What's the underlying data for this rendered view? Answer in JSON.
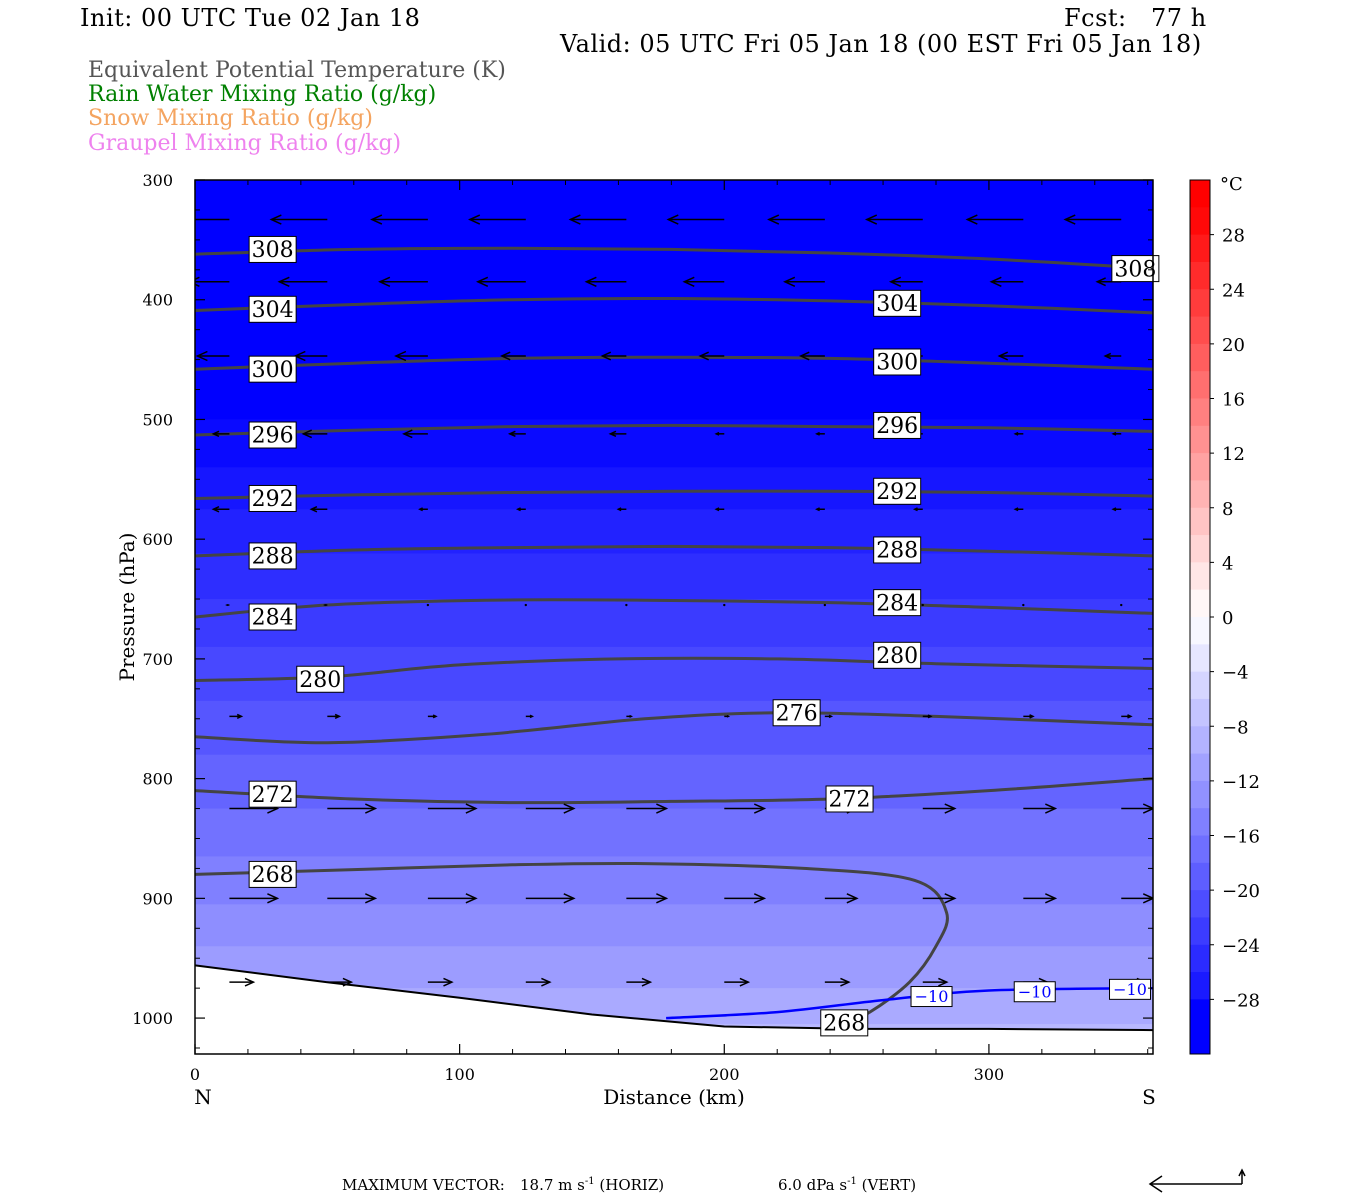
{
  "header": {
    "init": "Init: 00 UTC Tue 02 Jan 18",
    "fcst": "Fcst:   77 h",
    "valid": "Valid: 05 UTC Fri 05 Jan 18 (00 EST Fri 05 Jan 18)"
  },
  "fields": [
    {
      "label": "Equivalent Potential Temperature (K)",
      "color": "#555555"
    },
    {
      "label": "Rain Water Mixing Ratio (g/kg)",
      "color": "#008000"
    },
    {
      "label": "Snow Mixing Ratio (g/kg)",
      "color": "#f4a460"
    },
    {
      "label": "Graupel Mixing Ratio (g/kg)",
      "color": "#ee82ee"
    }
  ],
  "footer": {
    "max_vector_label": "MAXIMUM VECTOR:",
    "horiz_value": "18.7 m s",
    "horiz_unit": "(HORIZ)",
    "vert_value": "6.0 dPa s",
    "vert_unit": "(VERT)",
    "exponent": "-1"
  },
  "chart_data": {
    "type": "contour",
    "title": "",
    "xlabel": "Distance (km)",
    "ylabel": "Pressure (hPa)",
    "xlim": [
      0,
      362
    ],
    "ylim": [
      1030,
      300
    ],
    "x_ticks": [
      0,
      100,
      200,
      300
    ],
    "y_ticks": [
      300,
      400,
      500,
      600,
      700,
      800,
      900,
      1000
    ],
    "x_end_labels": {
      "left": "N",
      "right": "S"
    },
    "colorbar": {
      "unit": "°C",
      "tick_labels": [
        "28",
        "24",
        "20",
        "16",
        "12",
        "8",
        "4",
        "0",
        "−4",
        "−8",
        "−12",
        "−16",
        "−20",
        "−24",
        "−28"
      ],
      "tick_values": [
        28,
        24,
        20,
        16,
        12,
        8,
        4,
        0,
        -4,
        -8,
        -12,
        -16,
        -20,
        -24,
        -28
      ],
      "levels": [
        32,
        30,
        28,
        26,
        24,
        22,
        20,
        18,
        16,
        14,
        12,
        10,
        8,
        6,
        4,
        2,
        0,
        -2,
        -4,
        -6,
        -8,
        -10,
        -12,
        -14,
        -16,
        -18,
        -20,
        -22,
        -24,
        -26,
        -28,
        -32
      ],
      "warm_color": "#ff0000",
      "neutral_color": "#ffffff",
      "cold_color": "#0000ff"
    },
    "theta_e_contours": [
      {
        "value": "308",
        "labels": [
          {
            "x": 18,
            "p": 358
          },
          {
            "x": 344,
            "p": 374
          }
        ],
        "points": [
          [
            0,
            362
          ],
          [
            60,
            358
          ],
          [
            120,
            357
          ],
          [
            180,
            358
          ],
          [
            240,
            361
          ],
          [
            300,
            366
          ],
          [
            362,
            374
          ]
        ]
      },
      {
        "value": "304",
        "labels": [
          {
            "x": 18,
            "p": 408
          },
          {
            "x": 254,
            "p": 403
          }
        ],
        "points": [
          [
            0,
            409
          ],
          [
            60,
            404
          ],
          [
            120,
            400
          ],
          [
            180,
            399
          ],
          [
            240,
            401
          ],
          [
            300,
            405
          ],
          [
            362,
            411
          ]
        ]
      },
      {
        "value": "300",
        "labels": [
          {
            "x": 18,
            "p": 458
          },
          {
            "x": 254,
            "p": 452
          }
        ],
        "points": [
          [
            0,
            458
          ],
          [
            60,
            453
          ],
          [
            120,
            449
          ],
          [
            180,
            448
          ],
          [
            240,
            449
          ],
          [
            300,
            453
          ],
          [
            362,
            458
          ]
        ]
      },
      {
        "value": "296",
        "labels": [
          {
            "x": 18,
            "p": 513
          },
          {
            "x": 254,
            "p": 505
          }
        ],
        "points": [
          [
            0,
            513
          ],
          [
            60,
            509
          ],
          [
            120,
            506
          ],
          [
            180,
            505
          ],
          [
            240,
            506
          ],
          [
            300,
            507
          ],
          [
            362,
            510
          ]
        ]
      },
      {
        "value": "292",
        "labels": [
          {
            "x": 18,
            "p": 566
          },
          {
            "x": 254,
            "p": 560
          }
        ],
        "points": [
          [
            0,
            566
          ],
          [
            60,
            563
          ],
          [
            120,
            561
          ],
          [
            180,
            560
          ],
          [
            240,
            560
          ],
          [
            300,
            561
          ],
          [
            362,
            564
          ]
        ]
      },
      {
        "value": "288",
        "labels": [
          {
            "x": 18,
            "p": 614
          },
          {
            "x": 254,
            "p": 609
          }
        ],
        "points": [
          [
            0,
            614
          ],
          [
            60,
            609
          ],
          [
            120,
            607
          ],
          [
            180,
            606
          ],
          [
            240,
            607
          ],
          [
            300,
            610
          ],
          [
            362,
            614
          ]
        ]
      },
      {
        "value": "284",
        "labels": [
          {
            "x": 18,
            "p": 665
          },
          {
            "x": 254,
            "p": 653
          }
        ],
        "points": [
          [
            0,
            665
          ],
          [
            50,
            655
          ],
          [
            110,
            651
          ],
          [
            170,
            651
          ],
          [
            240,
            653
          ],
          [
            300,
            657
          ],
          [
            362,
            662
          ]
        ]
      },
      {
        "value": "280",
        "labels": [
          {
            "x": 36,
            "p": 717
          },
          {
            "x": 254,
            "p": 697
          }
        ],
        "points": [
          [
            0,
            718
          ],
          [
            50,
            715
          ],
          [
            100,
            705
          ],
          [
            160,
            700
          ],
          [
            220,
            700
          ],
          [
            280,
            704
          ],
          [
            362,
            708
          ]
        ]
      },
      {
        "value": "276",
        "labels": [
          {
            "x": 216,
            "p": 745
          }
        ],
        "points": [
          [
            0,
            765
          ],
          [
            50,
            770
          ],
          [
            110,
            763
          ],
          [
            170,
            750
          ],
          [
            220,
            745
          ],
          [
            280,
            748
          ],
          [
            362,
            755
          ]
        ]
      },
      {
        "value": "272",
        "labels": [
          {
            "x": 18,
            "p": 813
          },
          {
            "x": 236,
            "p": 817
          }
        ],
        "points": [
          [
            0,
            810
          ],
          [
            60,
            817
          ],
          [
            120,
            820
          ],
          [
            180,
            819
          ],
          [
            240,
            817
          ],
          [
            300,
            810
          ],
          [
            362,
            800
          ]
        ]
      },
      {
        "value": "268",
        "labels": [
          {
            "x": 18,
            "p": 880
          },
          {
            "x": 234,
            "p": 1004
          }
        ],
        "points": [
          [
            0,
            880
          ],
          [
            60,
            876
          ],
          [
            120,
            872
          ],
          [
            170,
            871
          ],
          [
            230,
            875
          ],
          [
            272,
            885
          ],
          [
            284,
            912
          ],
          [
            280,
            940
          ],
          [
            270,
            970
          ],
          [
            255,
            995
          ],
          [
            245,
            1004
          ]
        ]
      }
    ],
    "isotherm": {
      "value": "−10",
      "color": "#0000ff",
      "labels": [
        {
          "x": 270,
          "p": 982
        },
        {
          "x": 309,
          "p": 978
        },
        {
          "x": 345,
          "p": 976
        }
      ],
      "points": [
        [
          178,
          1000
        ],
        [
          220,
          995
        ],
        [
          260,
          985
        ],
        [
          300,
          977
        ],
        [
          362,
          975
        ]
      ]
    },
    "terrain_points": [
      [
        0,
        956
      ],
      [
        50,
        970
      ],
      [
        100,
        983
      ],
      [
        150,
        997
      ],
      [
        200,
        1007
      ],
      [
        250,
        1009
      ],
      [
        300,
        1009
      ],
      [
        362,
        1010
      ]
    ],
    "wind_vectors": {
      "x": [
        13,
        50,
        88,
        125,
        163,
        200,
        238,
        275,
        313,
        350
      ],
      "rows": [
        {
          "p": 333,
          "u": [
            -6,
            -7,
            -7,
            -7,
            -7,
            -7,
            -7,
            -7,
            -7,
            -7
          ]
        },
        {
          "p": 385,
          "u": [
            -5,
            -6,
            -6,
            -6,
            -5,
            -5,
            -5,
            -4,
            -4,
            -3
          ]
        },
        {
          "p": 447,
          "u": [
            -4,
            -4,
            -4,
            -3,
            -3,
            -3,
            -3,
            -3,
            -3,
            -2
          ]
        },
        {
          "p": 512,
          "u": [
            -2,
            -3,
            -3,
            -2,
            -2,
            -1,
            -1,
            -1,
            -1,
            -1
          ]
        },
        {
          "p": 575,
          "u": [
            -2,
            -2,
            -1,
            -1,
            -1,
            -1,
            -1,
            -1,
            -1,
            -1
          ]
        },
        {
          "p": 655,
          "u": [
            -0.3,
            -0.3,
            -0.2,
            0,
            0,
            0,
            0,
            0,
            0,
            0
          ]
        },
        {
          "p": 748,
          "u": [
            1.5,
            1.5,
            1,
            0.8,
            0.6,
            0.5,
            0.8,
            1,
            1.2,
            1.2
          ]
        },
        {
          "p": 825,
          "u": [
            6,
            6,
            6,
            6,
            5,
            5,
            4,
            4,
            4,
            4
          ]
        },
        {
          "p": 900,
          "u": [
            6,
            6,
            6,
            6,
            5,
            5,
            4,
            4,
            4,
            4
          ]
        },
        {
          "p": 970,
          "u": [
            3,
            3,
            3,
            3,
            3,
            3,
            3,
            3,
            3,
            3
          ]
        }
      ]
    }
  }
}
